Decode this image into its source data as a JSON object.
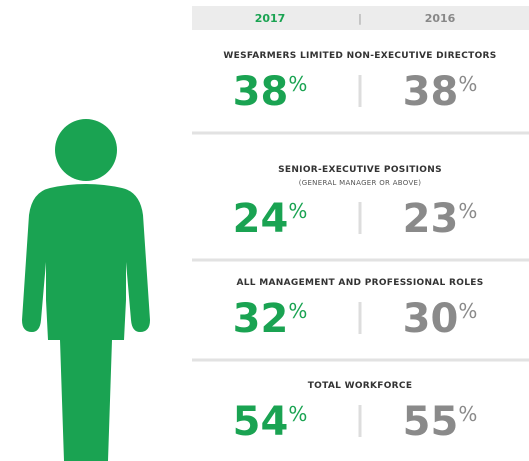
{
  "header": {
    "years": [
      "2017",
      "2016"
    ]
  },
  "unit": "%",
  "rows": [
    {
      "label": "WESFARMERS LIMITED NON-EXECUTIVE DIRECTORS",
      "values": [
        38,
        38
      ]
    },
    {
      "label": "SENIOR-EXECUTIVE POSITIONS",
      "sublabel": "(GENERAL MANAGER OR ABOVE)",
      "values": [
        24,
        23
      ]
    },
    {
      "label": "ALL MANAGEMENT AND PROFESSIONAL ROLES",
      "values": [
        32,
        30
      ]
    },
    {
      "label": "TOTAL WORKFORCE",
      "values": [
        54,
        55
      ]
    }
  ]
}
